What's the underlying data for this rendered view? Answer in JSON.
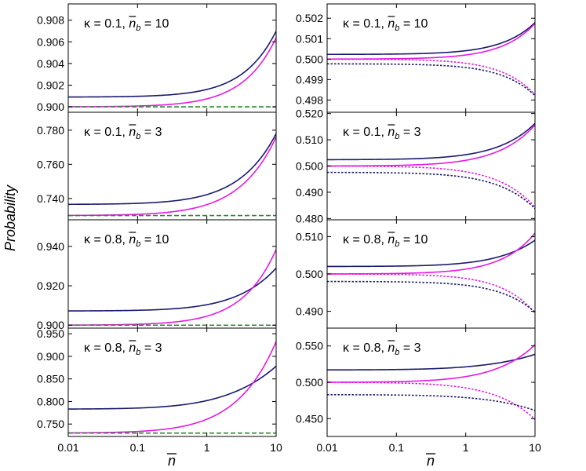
{
  "chart_data": {
    "type": "line",
    "ylabel": "Probability",
    "xlabel": "n",
    "x_scale": "log",
    "xlim": [
      0.01,
      10
    ],
    "x_ticks": [
      0.01,
      0.1,
      1,
      10
    ],
    "x_tick_labels": [
      "0.01",
      "0.1",
      "1",
      "10"
    ],
    "colors": {
      "navy": "#1a1a6e",
      "magenta": "#e619e6",
      "green": "#2a8a2a"
    },
    "panels": [
      {
        "id": "left-1",
        "col": 0,
        "row": 0,
        "annotation": {
          "kappa": "κ = 0.1,",
          "nb": "n",
          "sub": "b",
          "value": " = 10"
        },
        "ylim": [
          0.8995,
          0.9095
        ],
        "y_ticks": [
          0.9,
          0.902,
          0.904,
          0.906,
          0.908
        ],
        "y_tick_labels": [
          "0.900",
          "0.902",
          "0.904",
          "0.906",
          "0.908"
        ],
        "series": [
          {
            "name": "navy-solid",
            "color": "navy",
            "style": "solid",
            "a": 0.9009,
            "b": 0.00084,
            "c": 1.0,
            "r": 0.88
          },
          {
            "name": "magenta-solid",
            "color": "magenta",
            "style": "solid",
            "a": 0.9,
            "b": 0.00088,
            "c": 1.0,
            "r": 0.88
          },
          {
            "name": "green-dashed",
            "color": "green",
            "style": "dashed",
            "a": 0.9,
            "b": 0,
            "c": 1.0,
            "r": 1
          }
        ]
      },
      {
        "id": "right-1",
        "col": 1,
        "row": 0,
        "annotation": {
          "kappa": "κ = 0.1,",
          "nb": "n",
          "sub": "b",
          "value": " = 10"
        },
        "ylim": [
          0.4974,
          0.5027
        ],
        "y_ticks": [
          0.498,
          0.499,
          0.5,
          0.501,
          0.502
        ],
        "y_tick_labels": [
          "0.498",
          "0.499",
          "0.500",
          "0.501",
          "0.502"
        ],
        "series": [
          {
            "name": "navy-solid",
            "color": "navy",
            "style": "solid",
            "a": 0.50023,
            "b": 0.000215,
            "c": 1.0,
            "r": 0.88
          },
          {
            "name": "magenta-solid",
            "color": "magenta",
            "style": "solid",
            "a": 0.5,
            "b": 0.00024,
            "c": 1.0,
            "r": 0.88
          },
          {
            "name": "magenta-dotted",
            "color": "magenta",
            "style": "dotted",
            "a": 0.5,
            "b": -0.00024,
            "c": 1.0,
            "r": 0.88
          },
          {
            "name": "navy-dotted",
            "color": "navy",
            "style": "dotted",
            "a": 0.49977,
            "b": -0.000215,
            "c": 1.0,
            "r": 0.88
          }
        ]
      },
      {
        "id": "left-2",
        "col": 0,
        "row": 1,
        "annotation": {
          "kappa": "κ = 0.1,",
          "nb": "n",
          "sub": "b",
          "value": " = 3"
        },
        "ylim": [
          0.7275,
          0.7905
        ],
        "y_ticks": [
          0.74,
          0.76,
          0.78
        ],
        "y_tick_labels": [
          "0.740",
          "0.760",
          "0.780"
        ],
        "series": [
          {
            "name": "navy-solid",
            "color": "navy",
            "style": "solid",
            "a": 0.7365,
            "b": 0.0073,
            "c": 0.5,
            "r": 0.78
          },
          {
            "name": "magenta-solid",
            "color": "magenta",
            "style": "solid",
            "a": 0.73,
            "b": 0.0081,
            "c": 0.5,
            "r": 0.78
          },
          {
            "name": "green-dashed",
            "color": "green",
            "style": "dashed",
            "a": 0.73,
            "b": 0,
            "c": 1.0,
            "r": 1
          }
        ]
      },
      {
        "id": "right-2",
        "col": 1,
        "row": 1,
        "annotation": {
          "kappa": "κ = 0.1,",
          "nb": "n",
          "sub": "b",
          "value": " = 3"
        },
        "ylim": [
          0.4795,
          0.5205
        ],
        "y_ticks": [
          0.48,
          0.49,
          0.5,
          0.51,
          0.52
        ],
        "y_tick_labels": [
          "0.480",
          "0.490",
          "0.500",
          "0.510",
          "0.520"
        ],
        "series": [
          {
            "name": "navy-solid",
            "color": "navy",
            "style": "solid",
            "a": 0.5024,
            "b": 0.00244,
            "c": 0.5,
            "r": 0.78
          },
          {
            "name": "magenta-solid",
            "color": "magenta",
            "style": "solid",
            "a": 0.5,
            "b": 0.00276,
            "c": 0.5,
            "r": 0.78
          },
          {
            "name": "magenta-dotted",
            "color": "magenta",
            "style": "dotted",
            "a": 0.5,
            "b": -0.00276,
            "c": 0.5,
            "r": 0.78
          },
          {
            "name": "navy-dotted",
            "color": "navy",
            "style": "dotted",
            "a": 0.4976,
            "b": -0.00244,
            "c": 0.5,
            "r": 0.78
          }
        ]
      },
      {
        "id": "left-3",
        "col": 0,
        "row": 2,
        "annotation": {
          "kappa": "κ = 0.8,",
          "nb": "n",
          "sub": "b",
          "value": " = 10"
        },
        "ylim": [
          0.8985,
          0.9535
        ],
        "y_ticks": [
          0.9,
          0.92,
          0.94
        ],
        "y_tick_labels": [
          "0.900",
          "0.920",
          "0.940"
        ],
        "series": [
          {
            "name": "navy-solid",
            "color": "navy",
            "style": "solid",
            "a": 0.9072,
            "b": 0.0053,
            "c": 1.0,
            "r": 0.68
          },
          {
            "name": "magenta-solid",
            "color": "magenta",
            "style": "solid",
            "a": 0.9,
            "b": 0.0056,
            "c": 1.0,
            "r": 0.86
          },
          {
            "name": "green-dashed",
            "color": "green",
            "style": "dashed",
            "a": 0.9,
            "b": 0,
            "c": 1.0,
            "r": 1
          }
        ]
      },
      {
        "id": "right-3",
        "col": 1,
        "row": 2,
        "annotation": {
          "kappa": "κ = 0.8,",
          "nb": "n",
          "sub": "b",
          "value": " = 10"
        },
        "ylim": [
          0.4855,
          0.5145
        ],
        "y_ticks": [
          0.49,
          0.5,
          0.51
        ],
        "y_tick_labels": [
          "0.490",
          "0.500",
          "0.510"
        ],
        "series": [
          {
            "name": "navy-solid",
            "color": "navy",
            "style": "solid",
            "a": 0.502,
            "b": 0.00148,
            "c": 1.0,
            "r": 0.73
          },
          {
            "name": "magenta-solid",
            "color": "magenta",
            "style": "solid",
            "a": 0.5,
            "b": 0.00159,
            "c": 1.0,
            "r": 0.86
          },
          {
            "name": "magenta-dotted",
            "color": "magenta",
            "style": "dotted",
            "a": 0.5,
            "b": -0.00144,
            "c": 1.0,
            "r": 0.88
          },
          {
            "name": "navy-dotted",
            "color": "navy",
            "style": "dotted",
            "a": 0.498,
            "b": -0.00134,
            "c": 1.0,
            "r": 0.82
          }
        ]
      },
      {
        "id": "left-4",
        "col": 0,
        "row": 3,
        "annotation": {
          "kappa": "κ = 0.8,",
          "nb": "n",
          "sub": "b",
          "value": " = 3"
        },
        "ylim": [
          0.7225,
          0.9625
        ],
        "y_ticks": [
          0.75,
          0.8,
          0.85,
          0.9,
          0.95
        ],
        "y_tick_labels": [
          "0.750",
          "0.800",
          "0.850",
          "0.900",
          "0.950"
        ],
        "series": [
          {
            "name": "navy-solid",
            "color": "navy",
            "style": "solid",
            "a": 0.783,
            "b": 0.0353,
            "c": 0.5,
            "r": 0.52
          },
          {
            "name": "magenta-solid",
            "color": "magenta",
            "style": "solid",
            "a": 0.73,
            "b": 0.042,
            "c": 0.5,
            "r": 0.72
          },
          {
            "name": "green-dashed",
            "color": "green",
            "style": "dashed",
            "a": 0.73,
            "b": 0,
            "c": 1.0,
            "r": 1
          }
        ]
      },
      {
        "id": "right-4",
        "col": 1,
        "row": 3,
        "annotation": {
          "kappa": "κ = 0.8,",
          "nb": "n",
          "sub": "b",
          "value": " = 3"
        },
        "ylim": [
          0.4255,
          0.5745
        ],
        "y_ticks": [
          0.45,
          0.5,
          0.55
        ],
        "y_tick_labels": [
          "0.450",
          "0.500",
          "0.550"
        ],
        "series": [
          {
            "name": "navy-solid",
            "color": "navy",
            "style": "solid",
            "a": 0.517,
            "b": 0.00795,
            "c": 0.5,
            "r": 0.52
          },
          {
            "name": "magenta-solid",
            "color": "magenta",
            "style": "solid",
            "a": 0.5,
            "b": 0.0107,
            "c": 0.5,
            "r": 0.72
          },
          {
            "name": "magenta-dotted",
            "color": "magenta",
            "style": "dotted",
            "a": 0.5,
            "b": -0.01059,
            "c": 0.5,
            "r": 0.72
          },
          {
            "name": "navy-dotted",
            "color": "navy",
            "style": "dotted",
            "a": 0.483,
            "b": -0.00693,
            "c": 0.5,
            "r": 0.57
          }
        ]
      }
    ]
  }
}
